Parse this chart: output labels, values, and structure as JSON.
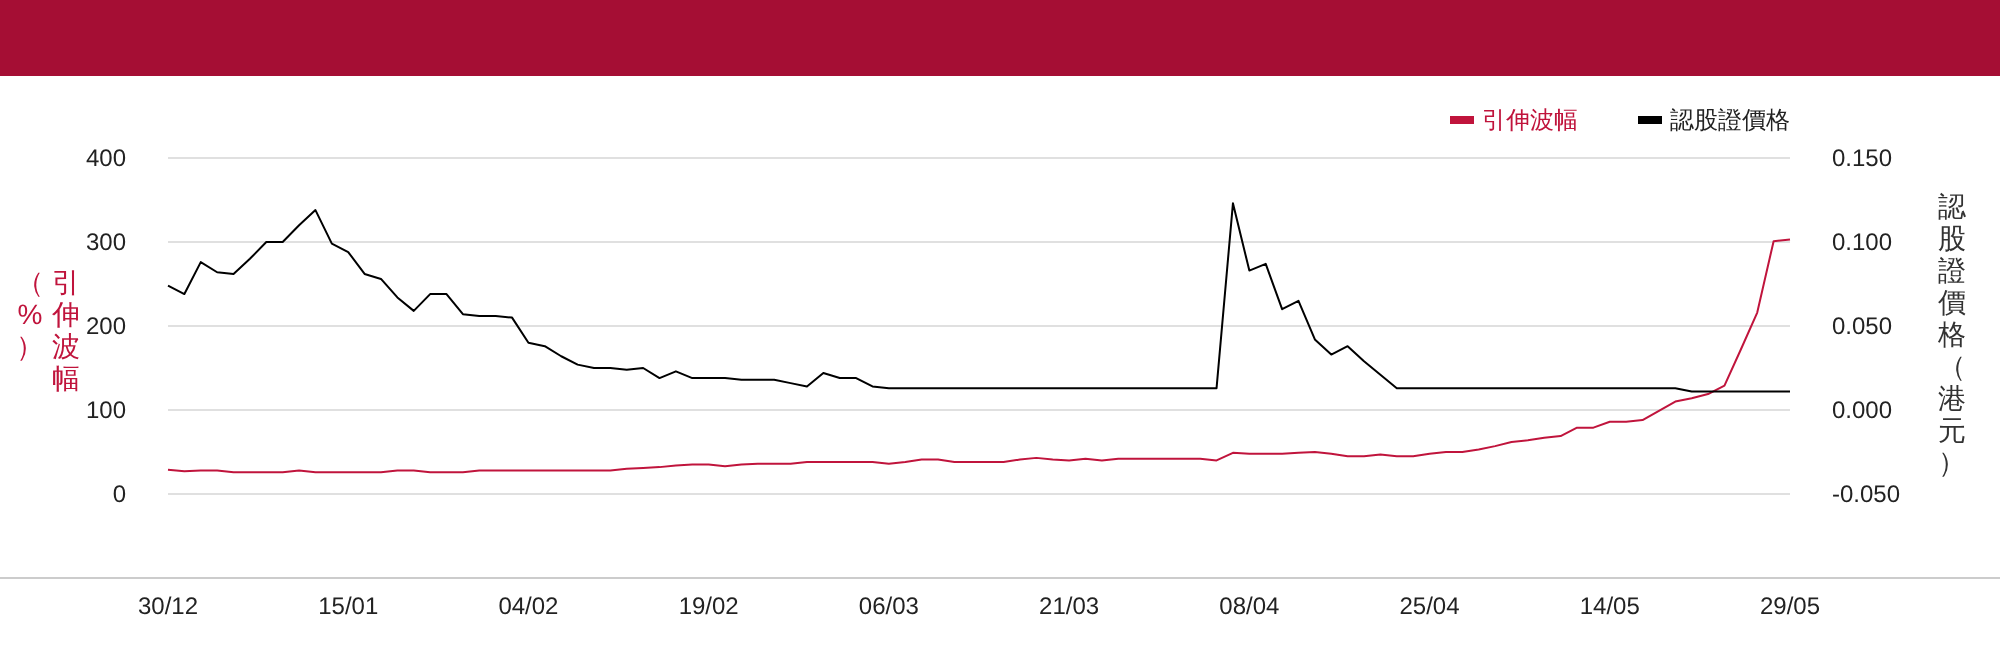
{
  "chart_data": {
    "type": "line",
    "categories": [
      "30/12",
      null,
      null,
      null,
      null,
      null,
      null,
      null,
      null,
      null,
      null,
      "15/01",
      null,
      null,
      null,
      null,
      null,
      null,
      null,
      null,
      null,
      null,
      "04/02",
      null,
      null,
      null,
      null,
      null,
      null,
      null,
      null,
      null,
      null,
      "19/02",
      null,
      null,
      null,
      null,
      null,
      null,
      null,
      null,
      null,
      null,
      "06/03",
      null,
      null,
      null,
      null,
      null,
      null,
      null,
      null,
      null,
      null,
      "21/03",
      null,
      null,
      null,
      null,
      null,
      null,
      null,
      null,
      null,
      null,
      "08/04",
      null,
      null,
      null,
      null,
      null,
      null,
      null,
      null,
      null,
      null,
      "25/04",
      null,
      null,
      null,
      null,
      null,
      null,
      null,
      null,
      null,
      null,
      "14/05",
      null,
      null,
      null,
      null,
      null,
      null,
      null,
      null,
      null,
      null,
      "29/05"
    ],
    "series": [
      {
        "name": "引伸波幅",
        "color": "#c0143c",
        "values": [
          29,
          27,
          28,
          28,
          26,
          26,
          26,
          26,
          28,
          26,
          26,
          26,
          26,
          26,
          28,
          28,
          26,
          26,
          26,
          28,
          28,
          28,
          28,
          28,
          28,
          28,
          28,
          28,
          30,
          31,
          32,
          34,
          35,
          35,
          33,
          35,
          36,
          36,
          36,
          38,
          38,
          38,
          38,
          38,
          36,
          38,
          41,
          41,
          38,
          38,
          38,
          38,
          41,
          43,
          41,
          40,
          42,
          40,
          42,
          42,
          42,
          42,
          42,
          42,
          40,
          49,
          48,
          48,
          48,
          49,
          50,
          48,
          45,
          45,
          47,
          45,
          45,
          48,
          50,
          50,
          53,
          57,
          62,
          64,
          67,
          69,
          79,
          79,
          86,
          86,
          88,
          99,
          110,
          114,
          119,
          129,
          172,
          216,
          301,
          303
        ]
      },
      {
        "name": "認股證價格",
        "color": "#000000",
        "axis": "y2",
        "values": [
          0.074,
          0.069,
          0.088,
          0.082,
          0.081,
          0.09,
          0.1,
          0.1,
          0.11,
          0.119,
          0.099,
          0.094,
          0.081,
          0.078,
          0.067,
          0.059,
          0.069,
          0.069,
          0.057,
          0.056,
          0.056,
          0.055,
          0.04,
          0.038,
          0.032,
          0.027,
          0.025,
          0.025,
          0.024,
          0.025,
          0.019,
          0.023,
          0.019,
          0.019,
          0.019,
          0.018,
          0.018,
          0.018,
          0.016,
          0.014,
          0.022,
          0.019,
          0.019,
          0.014,
          0.013,
          0.013,
          0.013,
          0.013,
          0.013,
          0.013,
          0.013,
          0.013,
          0.013,
          0.013,
          0.013,
          0.013,
          0.013,
          0.013,
          0.013,
          0.013,
          0.013,
          0.013,
          0.013,
          0.013,
          0.013,
          0.123,
          0.083,
          0.087,
          0.06,
          0.065,
          0.042,
          0.033,
          0.038,
          0.029,
          0.021,
          0.013,
          0.013,
          0.013,
          0.013,
          0.013,
          0.013,
          0.013,
          0.013,
          0.013,
          0.013,
          0.013,
          0.013,
          0.013,
          0.013,
          0.013,
          0.013,
          0.013,
          0.013,
          0.011,
          0.011,
          0.011,
          0.011,
          0.011,
          0.011,
          0.011
        ]
      }
    ],
    "ylabel": "引伸波幅（%）",
    "y2label": "認股證價格（港元）",
    "ylim": [
      -100,
      400
    ],
    "yticks": [
      0,
      100,
      200,
      300,
      400
    ],
    "y2lim": [
      -0.1,
      0.15
    ],
    "y2ticks": [
      {
        "value": -0.05,
        "label": "-0.050"
      },
      {
        "value": 0,
        "label": "0.000"
      },
      {
        "value": 0.05,
        "label": "0.050"
      },
      {
        "value": 0.1,
        "label": "0.100"
      },
      {
        "value": 0.15,
        "label": "0.150"
      }
    ],
    "grid": "y",
    "legend": "top right"
  }
}
